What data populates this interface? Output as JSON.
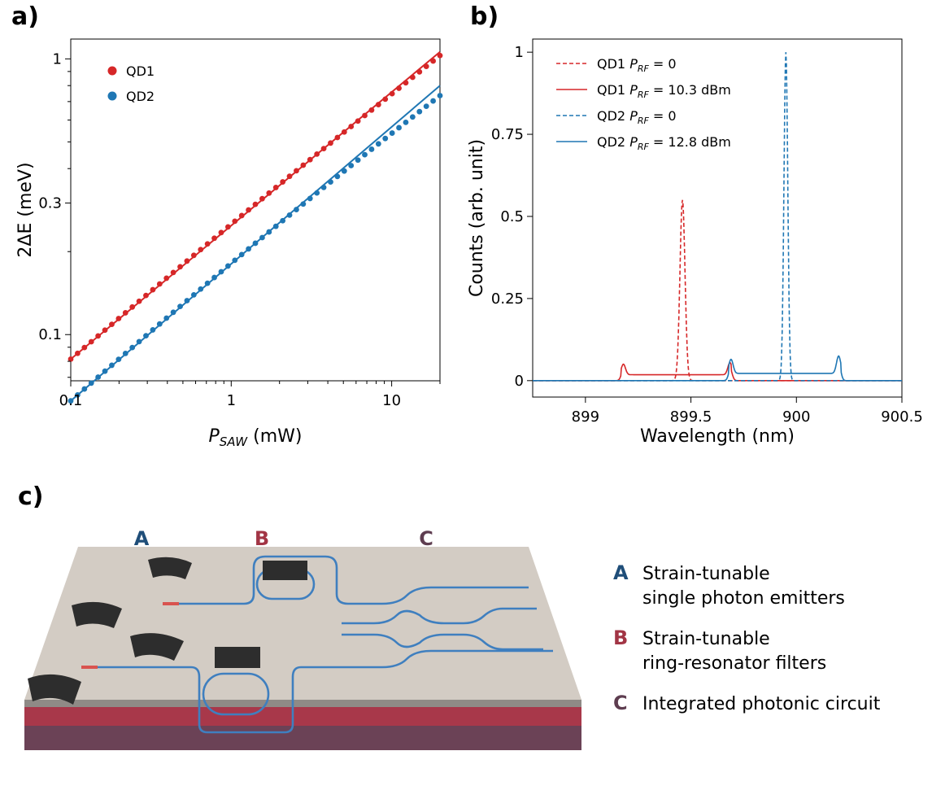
{
  "chart_data": [
    {
      "panel": "a)",
      "type": "scatter",
      "xlabel_main": "P",
      "xlabel_sub": "SAW",
      "xlabel_unit": " (mW)",
      "ylabel_main": "2ΔE",
      "ylabel_unit": " (meV)",
      "xscale": "log",
      "yscale": "log",
      "xlim": [
        0.1,
        20
      ],
      "ylim": [
        0.068,
        1.18
      ],
      "xticks": [
        {
          "v": 0.1,
          "label": "0.1"
        },
        {
          "v": 1,
          "label": "1"
        },
        {
          "v": 10,
          "label": "10"
        }
      ],
      "yticks": [
        {
          "v": 0.1,
          "label": "0.1"
        },
        {
          "v": 0.3,
          "label": "0.3"
        },
        {
          "v": 1,
          "label": "1"
        }
      ],
      "legend_loc": "upper left",
      "series": [
        {
          "name": "QD1",
          "color": "#d62728",
          "fit": [
            [
              0.1,
              0.0815
            ],
            [
              20,
              1.06
            ]
          ],
          "points_range": [
            0.1,
            20
          ],
          "points_scale": 1.0,
          "n_points": 55
        },
        {
          "name": "QD2",
          "color": "#1f77b4",
          "fit": [
            [
              0.1,
              0.0575
            ],
            [
              20,
              0.8
            ]
          ],
          "points_range": [
            0.1,
            20
          ],
          "points_scale": 0.95,
          "n_points": 55
        }
      ]
    },
    {
      "panel": "b)",
      "type": "line",
      "xlabel": "Wavelength (nm)",
      "ylabel": "Counts (arb. unit)",
      "xlim": [
        898.75,
        900.5
      ],
      "ylim": [
        -0.05,
        1.04
      ],
      "xticks": [
        {
          "v": 899,
          "label": "899"
        },
        {
          "v": 899.5,
          "label": "899.5"
        },
        {
          "v": 900,
          "label": "900"
        },
        {
          "v": 900.5,
          "label": "900.5"
        }
      ],
      "yticks": [
        {
          "v": 0,
          "label": "0"
        },
        {
          "v": 0.25,
          "label": "0.25"
        },
        {
          "v": 0.5,
          "label": "0.5"
        },
        {
          "v": 0.75,
          "label": "0.75"
        },
        {
          "v": 1,
          "label": "1"
        }
      ],
      "legend_loc": "upper left",
      "series": [
        {
          "label": "QD1",
          "sub": "RF",
          "value": " = 0",
          "color": "#d62728",
          "dash": true,
          "peaks": [
            {
              "x": 899.46,
              "h": 0.55,
              "w": 0.012
            }
          ]
        },
        {
          "label": "QD1",
          "sub": "RF",
          "value": " = 10.3 dBm",
          "color": "#d62728",
          "dash": false,
          "band": [
            899.17,
            899.69
          ],
          "band_level": 0.018,
          "edge_peaks": [
            {
              "x": 899.18,
              "h": 0.05
            },
            {
              "x": 899.685,
              "h": 0.055
            }
          ]
        },
        {
          "label": "QD2",
          "sub": "RF",
          "value": " = 0",
          "color": "#1f77b4",
          "dash": true,
          "peaks": [
            {
              "x": 899.95,
              "h": 1.0,
              "w": 0.009
            }
          ]
        },
        {
          "label": "QD2",
          "sub": "RF",
          "value": " = 12.8 dBm",
          "color": "#1f77b4",
          "dash": false,
          "band": [
            899.68,
            900.21
          ],
          "band_level": 0.022,
          "edge_peaks": [
            {
              "x": 899.69,
              "h": 0.065
            },
            {
              "x": 900.2,
              "h": 0.075
            }
          ]
        }
      ]
    }
  ],
  "panel_c": {
    "label": "c)",
    "letters": {
      "a": "A",
      "b": "B",
      "c": "C"
    },
    "legend": [
      {
        "letter": "A",
        "line1": "Strain-tunable",
        "line2": "single photon emitters",
        "color": "#1f4e79"
      },
      {
        "letter": "B",
        "line1": "Strain-tunable",
        "line2": "ring-resonator filters",
        "color": "#a23545"
      },
      {
        "letter": "C",
        "line1": "Integrated photonic circuit",
        "line2": "",
        "color": "#5e3d50"
      }
    ]
  }
}
